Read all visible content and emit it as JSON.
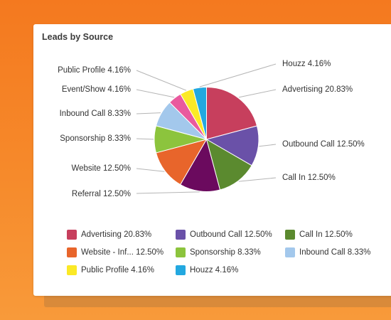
{
  "card": {
    "title": "Leads by Source"
  },
  "chart_data": {
    "type": "pie",
    "title": "Leads by Source",
    "slices": [
      {
        "label": "Advertising",
        "value": 20.83,
        "value_label": "20.83%",
        "color": "#c73f5d",
        "legend_label": "Advertising 20.83%",
        "callout": "Advertising 20.83%"
      },
      {
        "label": "Outbound Call",
        "value": 12.5,
        "value_label": "12.50%",
        "color": "#6a51a8",
        "legend_label": "Outbound Call 12.50%",
        "callout": "Outbound Call 12.50%"
      },
      {
        "label": "Call In",
        "value": 12.5,
        "value_label": "12.50%",
        "color": "#5b8a2f",
        "legend_label": "Call In 12.50%",
        "callout": "Call In 12.50%"
      },
      {
        "label": "Referral",
        "value": 12.5,
        "value_label": "12.50%",
        "color": "#6b0a5e",
        "legend_label": "",
        "callout": "Referral 12.50%"
      },
      {
        "label": "Website",
        "value": 12.5,
        "value_label": "12.50%",
        "color": "#e8652b",
        "legend_label": "Website - Inf... 12.50%",
        "callout": "Website 12.50%"
      },
      {
        "label": "Sponsorship",
        "value": 8.33,
        "value_label": "8.33%",
        "color": "#8cc43d",
        "legend_label": "Sponsorship 8.33%",
        "callout": "Sponsorship 8.33%"
      },
      {
        "label": "Inbound Call",
        "value": 8.33,
        "value_label": "8.33%",
        "color": "#a3c8ec",
        "legend_label": "Inbound Call 8.33%",
        "callout": "Inbound Call 8.33%"
      },
      {
        "label": "Event/Show",
        "value": 4.16,
        "value_label": "4.16%",
        "color": "#e9599e",
        "legend_label": "",
        "callout": "Event/Show 4.16%"
      },
      {
        "label": "Public Profile",
        "value": 4.16,
        "value_label": "4.16%",
        "color": "#fbe926",
        "legend_label": "Public Profile 4.16%",
        "callout": "Public Profile 4.16%"
      },
      {
        "label": "Houzz",
        "value": 4.16,
        "value_label": "4.16%",
        "color": "#23a8e0",
        "legend_label": "Houzz 4.16%",
        "callout": "Houzz 4.16%"
      }
    ],
    "legend_position": "bottom"
  }
}
